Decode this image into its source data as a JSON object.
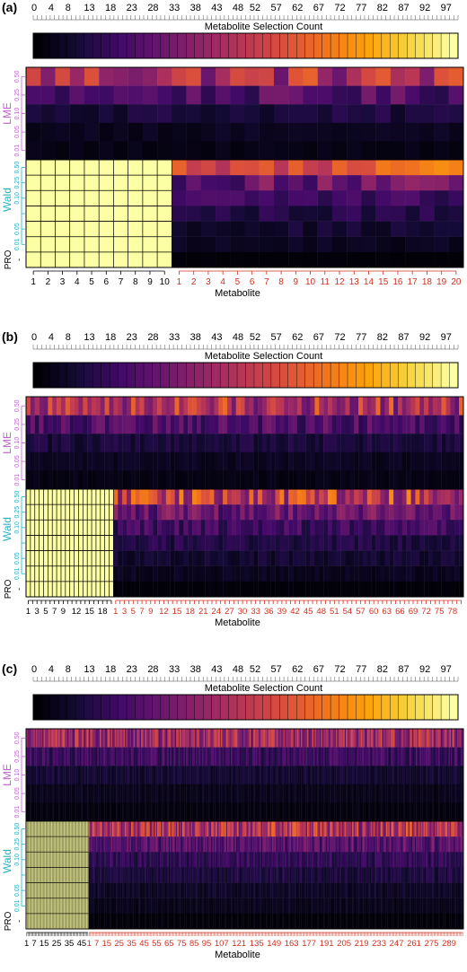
{
  "panels_label": "Metabolite Selection Count heatmaps",
  "colors": {
    "lme_label": "#c060d0",
    "wald_label": "#20b0c0",
    "pro_label": "#000000",
    "signal_tick": "#000000",
    "noise_tick": "#d03020",
    "frame": "#000000"
  },
  "chart_data": [
    {
      "type": "heatmap",
      "panel_label": "(a)",
      "colorbar_label": "Metabolite Selection Count",
      "colorbar_ticks": [
        "0",
        "4",
        "8",
        "13",
        "18",
        "23",
        "28",
        "33",
        "38",
        "43",
        "48",
        "52",
        "57",
        "62",
        "67",
        "72",
        "77",
        "82",
        "87",
        "92",
        "97"
      ],
      "colorbar_range": [
        0,
        100
      ],
      "row_groups": [
        {
          "name": "LME",
          "ticks": [
            "0.01",
            "0.05",
            "0.10",
            "0.25",
            "0.50"
          ]
        },
        {
          "name": "Wald",
          "ticks": [
            "0.01",
            "0.05",
            "0.10",
            "0.25",
            "0.50"
          ]
        },
        {
          "name": "PRO",
          "ticks": [
            "-"
          ]
        }
      ],
      "signal_metabolites": 10,
      "noise_metabolites": 20,
      "signal_ticks": [
        "1",
        "2",
        "3",
        "4",
        "5",
        "6",
        "7",
        "8",
        "9",
        "10"
      ],
      "noise_ticks": [
        "1",
        "2",
        "3",
        "4",
        "5",
        "6",
        "7",
        "8",
        "9",
        "10",
        "11",
        "12",
        "13",
        "14",
        "15",
        "16",
        "17",
        "18",
        "19",
        "20"
      ],
      "xlabel": "Metabolite",
      "lme_rows": 5,
      "wald_rows": 7,
      "signal_value_wald_pro": 100,
      "row_mean_counts_noise": {
        "lme": [
          45,
          22,
          10,
          5,
          3
        ],
        "wald": [
          50,
          28,
          18,
          12,
          8,
          5,
          2
        ],
        "pro": 0
      }
    },
    {
      "type": "heatmap",
      "panel_label": "(b)",
      "colorbar_label": "Metabolite Selection Count",
      "colorbar_ticks": [
        "0",
        "4",
        "8",
        "13",
        "18",
        "23",
        "28",
        "33",
        "38",
        "43",
        "48",
        "52",
        "57",
        "62",
        "67",
        "72",
        "77",
        "82",
        "87",
        "92",
        "97"
      ],
      "colorbar_range": [
        0,
        100
      ],
      "row_groups": [
        {
          "name": "LME",
          "ticks": [
            "0.01",
            "0.05",
            "0.10",
            "0.25",
            "0.50"
          ]
        },
        {
          "name": "Wald",
          "ticks": [
            "0.01",
            "0.05",
            "0.10",
            "0.25",
            "0.50"
          ]
        },
        {
          "name": "PRO",
          "ticks": [
            "-"
          ]
        }
      ],
      "signal_metabolites": 20,
      "noise_metabolites": 80,
      "signal_ticks": [
        "1",
        "3",
        "5",
        "7",
        "9",
        "12",
        "15",
        "18"
      ],
      "noise_ticks": [
        "1",
        "3",
        "5",
        "7",
        "9",
        "12",
        "15",
        "18",
        "21",
        "24",
        "27",
        "30",
        "33",
        "36",
        "39",
        "42",
        "45",
        "48",
        "51",
        "54",
        "57",
        "60",
        "63",
        "66",
        "69",
        "72",
        "75",
        "78"
      ],
      "xlabel": "Metabolite",
      "lme_rows": 5,
      "wald_rows": 7,
      "signal_value_wald_pro": 100,
      "row_mean_counts_noise": {
        "lme": [
          45,
          22,
          10,
          5,
          3
        ],
        "wald": [
          50,
          28,
          18,
          12,
          8,
          5,
          2
        ],
        "pro": 0
      }
    },
    {
      "type": "heatmap",
      "panel_label": "(c)",
      "colorbar_label": "Metabolite Selection Count",
      "colorbar_ticks": [
        "0",
        "4",
        "8",
        "13",
        "18",
        "23",
        "28",
        "33",
        "38",
        "43",
        "48",
        "52",
        "57",
        "62",
        "67",
        "72",
        "77",
        "82",
        "87",
        "92",
        "97"
      ],
      "colorbar_range": [
        0,
        100
      ],
      "row_groups": [
        {
          "name": "LME",
          "ticks": [
            "0.01",
            "0.05",
            "0.10",
            "0.25",
            "0.50"
          ]
        },
        {
          "name": "Wald",
          "ticks": [
            "0.01",
            "0.05",
            "0.10",
            "0.25",
            "0.50"
          ]
        },
        {
          "name": "PRO",
          "ticks": [
            "-"
          ]
        }
      ],
      "signal_metabolites": 50,
      "noise_metabolites": 300,
      "signal_ticks": [
        "1",
        "7",
        "15",
        "25",
        "35",
        "45"
      ],
      "noise_ticks": [
        "1",
        "7",
        "15",
        "25",
        "35",
        "45",
        "55",
        "65",
        "75",
        "85",
        "95",
        "107",
        "121",
        "135",
        "149",
        "163",
        "177",
        "191",
        "205",
        "219",
        "233",
        "247",
        "261",
        "275",
        "289"
      ],
      "xlabel": "Metabolite",
      "lme_rows": 5,
      "wald_rows": 7,
      "signal_value_wald_pro": 100,
      "row_mean_counts_noise": {
        "lme": [
          40,
          18,
          8,
          4,
          2
        ],
        "wald": [
          45,
          24,
          15,
          10,
          6,
          4,
          1
        ],
        "pro": 0
      }
    }
  ]
}
